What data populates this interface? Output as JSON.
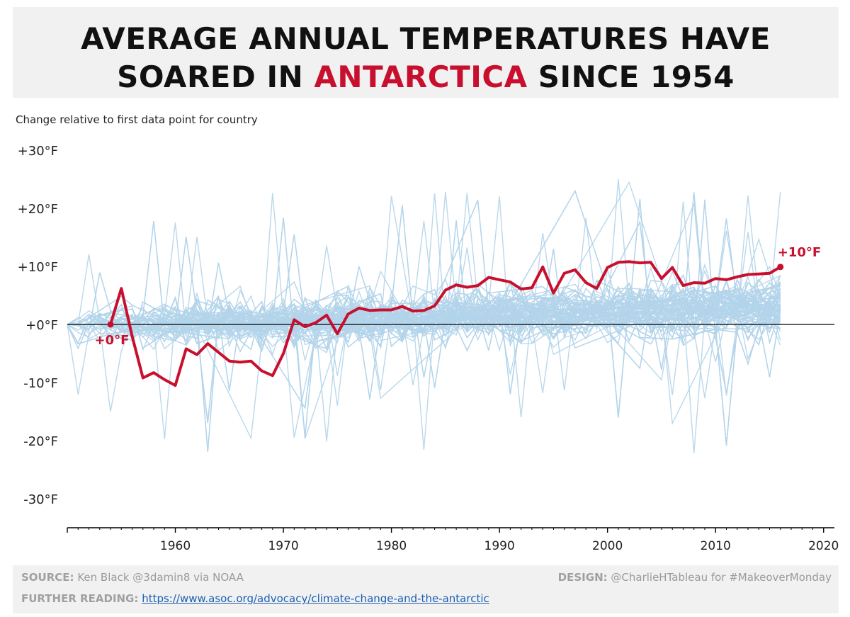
{
  "title": {
    "line1": "AVERAGE ANNUAL TEMPERATURES HAVE",
    "line2_before": "SOARED IN ",
    "line2_highlight": "ANTARCTICA",
    "line2_after": " SINCE 1954"
  },
  "subtitle": "Change relative to first data point for country",
  "footer": {
    "source_label": "SOURCE:",
    "source_text": "Ken Black @3damin8 via NOAA",
    "design_label": "DESIGN:",
    "design_text": "@CharlieHTableau for #MakeoverMonday",
    "reading_label": "FURTHER READING:",
    "reading_url": "https://www.asoc.org/advocacy/climate-change-and-the-antarctic"
  },
  "colors": {
    "highlight": "#c8102e",
    "background_lines": "#b3d4ea",
    "zero_line": "#000000"
  },
  "chart_data": {
    "type": "line",
    "title": "",
    "xlabel": "",
    "ylabel": "",
    "xlim": [
      1950,
      2021
    ],
    "ylim": [
      -35,
      32
    ],
    "y_ticks": [
      {
        "value": 30,
        "label": "+30°F"
      },
      {
        "value": 20,
        "label": "+20°F"
      },
      {
        "value": 10,
        "label": "+10°F"
      },
      {
        "value": 0,
        "label": "+0°F"
      },
      {
        "value": -10,
        "label": "-10°F"
      },
      {
        "value": -20,
        "label": "-20°F"
      },
      {
        "value": -30,
        "label": "-30°F"
      }
    ],
    "x_ticks": [
      {
        "value": 1960,
        "label": "1960"
      },
      {
        "value": 1970,
        "label": "1970"
      },
      {
        "value": 1980,
        "label": "1980"
      },
      {
        "value": 1990,
        "label": "1990"
      },
      {
        "value": 2000,
        "label": "2000"
      },
      {
        "value": 2010,
        "label": "2010"
      },
      {
        "value": 2020,
        "label": "2020"
      }
    ],
    "grid": false,
    "background_series_note": "hundreds of other countries' series, drawn as thin light-blue lines",
    "highlight_series": {
      "x": [
        1954,
        1955,
        1956,
        1957,
        1958,
        1959,
        1960,
        1961,
        1962,
        1963,
        1964,
        1965,
        1966,
        1967,
        1968,
        1969,
        1970,
        1971,
        1972,
        1973,
        1974,
        1975,
        1976,
        1977,
        1978,
        1979,
        1980,
        1981,
        1982,
        1983,
        1984,
        1985,
        1986,
        1987,
        1988,
        1989,
        1990,
        1991,
        1992,
        1993,
        1994,
        1995,
        1996,
        1997,
        1998,
        1999,
        2000,
        2001,
        2002,
        2003,
        2004,
        2005,
        2006,
        2007,
        2008,
        2009,
        2010,
        2011,
        2012,
        2013,
        2014,
        2015,
        2016
      ],
      "y": [
        0,
        6.2,
        -2,
        -9.2,
        -8.3,
        -9.5,
        -10.5,
        -4.2,
        -5.2,
        -3.3,
        -4.8,
        -6.3,
        -6.5,
        -6.3,
        -8,
        -8.8,
        -5,
        0.8,
        -0.4,
        0.3,
        1.6,
        -1.6,
        1.8,
        2.8,
        2.4,
        2.5,
        2.5,
        3.1,
        2.3,
        2.4,
        3.2,
        5.9,
        6.8,
        6.4,
        6.7,
        8.1,
        7.7,
        7.3,
        6.1,
        6.3,
        9.9,
        5.4,
        8.8,
        9.4,
        7.2,
        6.2,
        9.8,
        10.7,
        10.8,
        10.6,
        10.7,
        7.9,
        9.8,
        6.7,
        7.2,
        7.1,
        7.9,
        7.7,
        8.2,
        8.6,
        8.7,
        8.8,
        9.9
      ],
      "start_label": "+0°F",
      "end_label": "+10°F"
    }
  }
}
